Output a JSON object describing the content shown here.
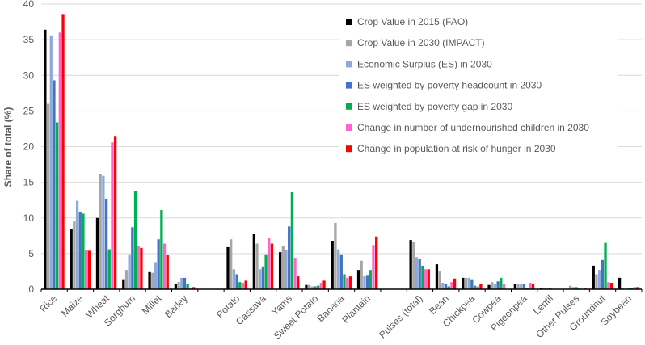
{
  "chart_data": {
    "type": "bar",
    "title": "",
    "xlabel": "",
    "ylabel": "Share of total (%)",
    "ylim": [
      0,
      40
    ],
    "yticks": [
      0,
      5,
      10,
      15,
      20,
      25,
      30,
      35,
      40
    ],
    "grid": true,
    "legend_position": "top-right",
    "categories": [
      "Rice",
      "Maize",
      "Wheat",
      "Sorghum",
      "Millet",
      "Barley",
      "",
      "Potato",
      "Cassava",
      "Yams",
      "Sweet Potato",
      "Banana",
      "Plantain",
      "",
      "Pulses (total)",
      "Bean",
      "Chickpea",
      "Cowpea",
      "Pigeonpea",
      "Lentil",
      "Other Pulses",
      "Groundnut",
      "Soybean"
    ],
    "series": [
      {
        "name": "Crop Value in 2015 (FAO)",
        "color": "#000000",
        "values": [
          36.4,
          8.4,
          10.0,
          1.4,
          2.4,
          0.8,
          null,
          5.9,
          7.8,
          5.2,
          0.6,
          6.8,
          2.7,
          null,
          6.9,
          3.5,
          1.6,
          0.6,
          0.7,
          0.2,
          0.0,
          3.3,
          1.6
        ]
      },
      {
        "name": "Crop Value in 2030 (IMPACT)",
        "color": "#a6a6a6",
        "values": [
          26.0,
          9.6,
          16.2,
          2.7,
          2.3,
          1.0,
          null,
          7.0,
          6.4,
          6.0,
          0.6,
          9.3,
          4.0,
          null,
          6.6,
          2.5,
          1.6,
          1.0,
          0.8,
          0.2,
          0.5,
          2.1,
          0.2
        ]
      },
      {
        "name": "Economic Surplus (ES) in 2030",
        "color": "#8eaadb",
        "values": [
          35.6,
          12.4,
          15.9,
          4.9,
          3.8,
          1.6,
          null,
          2.8,
          2.8,
          5.5,
          0.4,
          5.6,
          1.9,
          null,
          4.5,
          0.9,
          1.6,
          0.8,
          0.7,
          0.2,
          0.3,
          2.7,
          0.0
        ]
      },
      {
        "name": "ES weighted by poverty headcount in 2030",
        "color": "#4472c4",
        "values": [
          29.3,
          10.8,
          12.7,
          8.7,
          7.0,
          1.6,
          null,
          2.1,
          3.2,
          8.8,
          0.4,
          4.9,
          2.0,
          null,
          4.3,
          0.7,
          1.4,
          1.1,
          0.7,
          0.2,
          0.3,
          4.1,
          0.1
        ]
      },
      {
        "name": "ES weighted by poverty gap in 2030",
        "color": "#00b050",
        "values": [
          23.4,
          10.6,
          5.6,
          13.8,
          11.1,
          0.7,
          null,
          1.0,
          4.9,
          13.6,
          0.5,
          2.1,
          2.7,
          null,
          3.3,
          0.4,
          0.5,
          1.6,
          0.2,
          0.0,
          0.1,
          6.5,
          0.2
        ]
      },
      {
        "name": "Change in number of undernourished children in 2030",
        "color": "#ff66cc",
        "values": [
          36.0,
          5.5,
          20.6,
          6.1,
          6.4,
          0.1,
          null,
          0.9,
          7.2,
          4.4,
          0.9,
          1.6,
          6.2,
          null,
          2.8,
          1.0,
          0.4,
          0.7,
          0.9,
          0.0,
          0.0,
          1.0,
          0.3
        ]
      },
      {
        "name": "Change in population at risk of hunger in 2030",
        "color": "#ff0000",
        "values": [
          38.6,
          5.4,
          21.5,
          5.8,
          4.8,
          0.3,
          null,
          1.2,
          6.4,
          1.8,
          1.2,
          1.8,
          7.4,
          null,
          2.8,
          1.5,
          0.8,
          0.0,
          0.8,
          0.0,
          0.1,
          0.9,
          0.3
        ]
      }
    ]
  }
}
